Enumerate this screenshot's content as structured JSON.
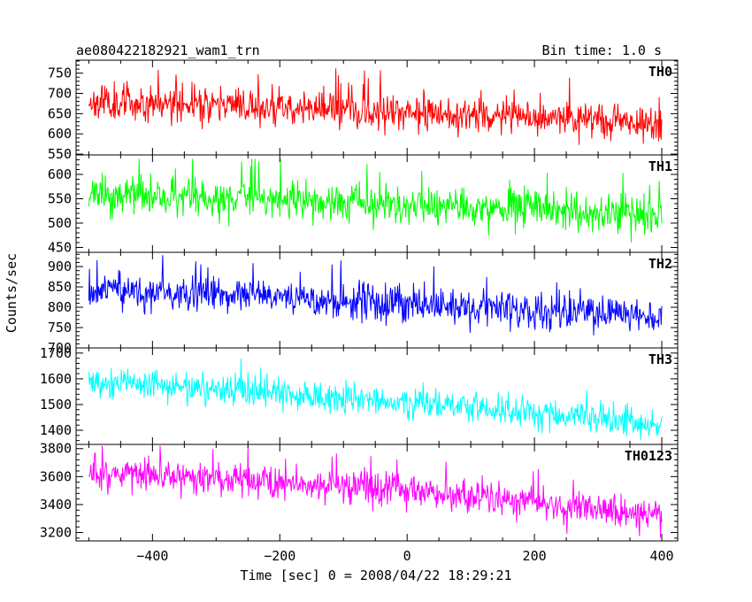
{
  "figure": {
    "title_left": "ae080422182921_wam1_trn",
    "title_right": "Bin time: 1.0 s",
    "ylabel": "Counts/sec",
    "xlabel": "Time [sec] 0 = 2008/04/22 18:29:21"
  },
  "chart_data": [
    {
      "type": "line",
      "series": [
        {
          "name": "TH0",
          "color": "#ff0000"
        }
      ],
      "x_range": [
        -500,
        400
      ],
      "xlim": [
        -520,
        425
      ],
      "ylim": [
        548,
        782
      ],
      "yticks": [
        550,
        600,
        650,
        700,
        750
      ],
      "ytick_labels": [
        "550",
        "600",
        "650",
        "700",
        "750"
      ],
      "mean_start": 680,
      "mean_end": 625,
      "noise_amplitude": 40,
      "spike_max": 782,
      "seed": 11
    },
    {
      "type": "line",
      "series": [
        {
          "name": "TH1",
          "color": "#00ff00"
        }
      ],
      "x_range": [
        -500,
        400
      ],
      "xlim": [
        -520,
        425
      ],
      "ylim": [
        440,
        640
      ],
      "yticks": [
        450,
        500,
        550,
        600
      ],
      "ytick_labels": [
        "450",
        "500",
        "550",
        "600"
      ],
      "mean_start": 556,
      "mean_end": 515,
      "noise_amplitude": 35,
      "spike_max": 632,
      "seed": 23
    },
    {
      "type": "line",
      "series": [
        {
          "name": "TH2",
          "color": "#0000ff"
        }
      ],
      "x_range": [
        -500,
        400
      ],
      "xlim": [
        -520,
        425
      ],
      "ylim": [
        700,
        935
      ],
      "yticks": [
        700,
        750,
        800,
        850,
        900
      ],
      "ytick_labels": [
        "700",
        "750",
        "800",
        "850",
        "900"
      ],
      "mean_start": 840,
      "mean_end": 775,
      "noise_amplitude": 40,
      "spike_max": 928,
      "seed": 37
    },
    {
      "type": "line",
      "series": [
        {
          "name": "TH3",
          "color": "#00ffff"
        }
      ],
      "x_range": [
        -500,
        400
      ],
      "xlim": [
        -520,
        425
      ],
      "ylim": [
        1345,
        1720
      ],
      "yticks": [
        1400,
        1500,
        1600,
        1700
      ],
      "ytick_labels": [
        "1400",
        "1500",
        "1600",
        "1700"
      ],
      "mean_start": 1585,
      "mean_end": 1420,
      "noise_amplitude": 55,
      "spike_max": 1710,
      "seed": 53
    },
    {
      "type": "line",
      "series": [
        {
          "name": "TH0123",
          "color": "#ff00ff"
        }
      ],
      "x_range": [
        -500,
        400
      ],
      "xlim": [
        -520,
        425
      ],
      "ylim": [
        3140,
        3830
      ],
      "yticks": [
        3200,
        3400,
        3600,
        3800
      ],
      "ytick_labels": [
        "3200",
        "3400",
        "3600",
        "3800"
      ],
      "mean_start": 3630,
      "mean_end": 3320,
      "noise_amplitude": 110,
      "spike_max": 3820,
      "seed": 71
    }
  ],
  "x_axis": {
    "ticks": [
      -400,
      -200,
      0,
      200,
      400
    ],
    "tick_labels": [
      "−400",
      "−200",
      "0",
      "200",
      "400"
    ]
  }
}
